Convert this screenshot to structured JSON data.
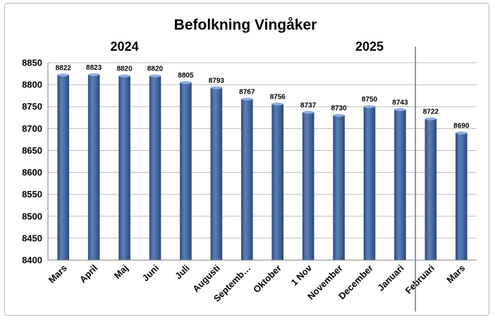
{
  "chart_data": {
    "type": "bar",
    "title": "Befolkning Vingåker",
    "xlabel": "",
    "ylabel": "",
    "ylim": [
      8400,
      8850
    ],
    "ytick_step": 50,
    "grid": true,
    "year_labels": [
      {
        "label": "2024",
        "start_index": 0,
        "end_index": 4
      },
      {
        "label": "2025",
        "start_index": 8,
        "end_index": 12
      }
    ],
    "divider_after_index": 12,
    "categories": [
      "Mars",
      "April",
      "Maj",
      "Juni",
      "Juli",
      "Augusti",
      "Septemb…",
      "Oktober",
      "1 Nov",
      "November",
      "December",
      "Januari",
      "Februari",
      "Mars"
    ],
    "series": [
      {
        "values": [
          8822,
          8823,
          8820,
          8820,
          8805,
          8793,
          8767,
          8756,
          8737,
          8730,
          8750,
          8743,
          8722,
          8690
        ],
        "color": "#4b6fa8"
      }
    ],
    "data_labels": [
      "8822",
      "8823",
      "8820",
      "8820",
      "8805",
      "8793",
      "8767",
      "8756",
      "8737",
      "8730",
      "8750",
      "8743",
      "8722",
      "8690"
    ]
  }
}
